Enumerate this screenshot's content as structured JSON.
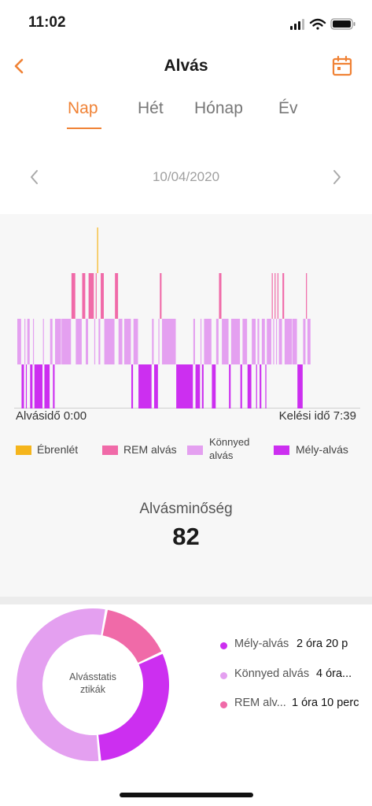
{
  "status_bar": {
    "time": "11:02"
  },
  "header": {
    "title": "Alvás"
  },
  "tabs": [
    {
      "label": "Nap",
      "active": true
    },
    {
      "label": "Hét",
      "active": false
    },
    {
      "label": "Hónap",
      "active": false
    },
    {
      "label": "Év",
      "active": false
    }
  ],
  "date": "10/04/2020",
  "hypnogram": {
    "start_label": "Alvásidő 0:00",
    "end_label": "Kelési idő 7:39",
    "start_minute": 0,
    "end_minute": 459,
    "segments": [
      {
        "stage": "light",
        "start": 0,
        "end": 6
      },
      {
        "stage": "deep",
        "start": 6,
        "end": 10
      },
      {
        "stage": "light",
        "start": 10,
        "end": 12
      },
      {
        "stage": "deep",
        "start": 12,
        "end": 14
      },
      {
        "stage": "light",
        "start": 14,
        "end": 18
      },
      {
        "stage": "deep",
        "start": 18,
        "end": 22
      },
      {
        "stage": "light",
        "start": 22,
        "end": 24
      },
      {
        "stage": "deep",
        "start": 24,
        "end": 36
      },
      {
        "stage": "light",
        "start": 36,
        "end": 38
      },
      {
        "stage": "deep",
        "start": 38,
        "end": 46
      },
      {
        "stage": "light",
        "start": 46,
        "end": 50
      },
      {
        "stage": "deep",
        "start": 50,
        "end": 53
      },
      {
        "stage": "light",
        "start": 53,
        "end": 62
      },
      {
        "stage": "light",
        "start": 62,
        "end": 76
      },
      {
        "stage": "rem",
        "start": 76,
        "end": 82
      },
      {
        "stage": "light",
        "start": 82,
        "end": 91
      },
      {
        "stage": "rem",
        "start": 91,
        "end": 96
      },
      {
        "stage": "light",
        "start": 96,
        "end": 100
      },
      {
        "stage": "rem",
        "start": 100,
        "end": 108
      },
      {
        "stage": "light",
        "start": 108,
        "end": 110
      },
      {
        "stage": "rem",
        "start": 110,
        "end": 112
      },
      {
        "stage": "awake",
        "start": 112,
        "end": 114
      },
      {
        "stage": "light",
        "start": 114,
        "end": 117
      },
      {
        "stage": "rem",
        "start": 117,
        "end": 122
      },
      {
        "stage": "light",
        "start": 122,
        "end": 137
      },
      {
        "stage": "rem",
        "start": 137,
        "end": 142
      },
      {
        "stage": "light",
        "start": 142,
        "end": 148
      },
      {
        "stage": "light",
        "start": 150,
        "end": 160
      },
      {
        "stage": "deep",
        "start": 160,
        "end": 163
      },
      {
        "stage": "light",
        "start": 163,
        "end": 170
      },
      {
        "stage": "deep",
        "start": 170,
        "end": 189
      },
      {
        "stage": "light",
        "start": 189,
        "end": 192
      },
      {
        "stage": "deep",
        "start": 192,
        "end": 198
      },
      {
        "stage": "light",
        "start": 198,
        "end": 200
      },
      {
        "stage": "rem",
        "start": 200,
        "end": 203
      },
      {
        "stage": "light",
        "start": 203,
        "end": 223
      },
      {
        "stage": "deep",
        "start": 223,
        "end": 247
      },
      {
        "stage": "light",
        "start": 247,
        "end": 250
      },
      {
        "stage": "deep",
        "start": 250,
        "end": 257
      },
      {
        "stage": "light",
        "start": 257,
        "end": 259
      },
      {
        "stage": "deep",
        "start": 259,
        "end": 262
      },
      {
        "stage": "light",
        "start": 262,
        "end": 273
      },
      {
        "stage": "deep",
        "start": 273,
        "end": 279
      },
      {
        "stage": "light",
        "start": 279,
        "end": 283
      },
      {
        "stage": "rem",
        "start": 283,
        "end": 287
      },
      {
        "stage": "light",
        "start": 287,
        "end": 297
      },
      {
        "stage": "deep",
        "start": 297,
        "end": 300
      },
      {
        "stage": "light",
        "start": 300,
        "end": 313
      },
      {
        "stage": "deep",
        "start": 313,
        "end": 316
      },
      {
        "stage": "light",
        "start": 316,
        "end": 323
      },
      {
        "stage": "deep",
        "start": 323,
        "end": 329
      },
      {
        "stage": "light",
        "start": 329,
        "end": 335
      },
      {
        "stage": "deep",
        "start": 335,
        "end": 337
      },
      {
        "stage": "light",
        "start": 337,
        "end": 340
      },
      {
        "stage": "deep",
        "start": 340,
        "end": 343
      },
      {
        "stage": "light",
        "start": 343,
        "end": 348
      },
      {
        "stage": "deep",
        "start": 348,
        "end": 350
      },
      {
        "stage": "light",
        "start": 350,
        "end": 357
      },
      {
        "stage": "rem",
        "start": 357,
        "end": 359
      },
      {
        "stage": "light",
        "start": 359,
        "end": 361
      },
      {
        "stage": "rem",
        "start": 361,
        "end": 363
      },
      {
        "stage": "light",
        "start": 363,
        "end": 365
      },
      {
        "stage": "rem",
        "start": 365,
        "end": 367
      },
      {
        "stage": "light",
        "start": 367,
        "end": 372
      },
      {
        "stage": "rem",
        "start": 372,
        "end": 375
      },
      {
        "stage": "light",
        "start": 375,
        "end": 386
      },
      {
        "stage": "light",
        "start": 386,
        "end": 393
      },
      {
        "stage": "deep",
        "start": 393,
        "end": 401
      },
      {
        "stage": "light",
        "start": 401,
        "end": 405
      },
      {
        "stage": "rem",
        "start": 405,
        "end": 407
      },
      {
        "stage": "light",
        "start": 407,
        "end": 412
      }
    ]
  },
  "legend": [
    {
      "label": "Ébrenlét",
      "color": "#f5b51c"
    },
    {
      "label": "REM alvás",
      "color": "#f06aa8"
    },
    {
      "label_line1": "Könnyed",
      "label_line2": "alvás",
      "color": "#e4a0f0"
    },
    {
      "label": "Mély-alvás",
      "color": "#cc2ff0"
    }
  ],
  "quality": {
    "label": "Alvásminőség",
    "value": "82"
  },
  "stats": {
    "center_line1": "Alvásstatis",
    "center_line2": "ztikák",
    "items": [
      {
        "label": "Mély-alvás",
        "value": "2 óra 20 p",
        "color": "#cc2ff0",
        "minutes": 140
      },
      {
        "label": "Könnyed alvás",
        "value": "4 óra...",
        "color": "#e4a0f0",
        "minutes": 250
      },
      {
        "label": "REM alv...",
        "value": "1 óra 10 perc",
        "color": "#f06aa8",
        "minutes": 70
      }
    ]
  },
  "colors": {
    "accent": "#f08235",
    "awake": "#f5b51c",
    "rem": "#f06aa8",
    "light": "#e4a0f0",
    "deep": "#cc2ff0"
  }
}
